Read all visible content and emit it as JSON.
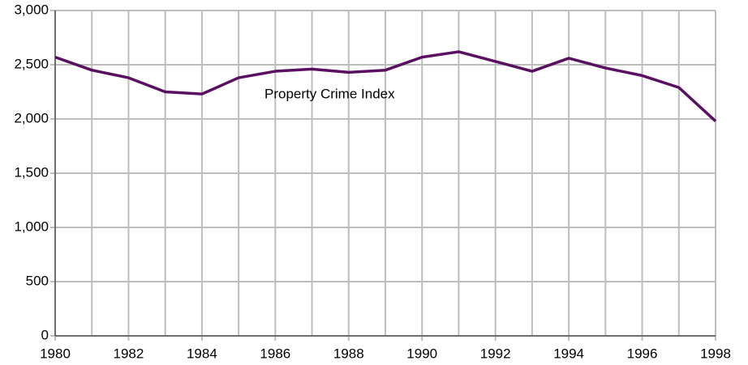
{
  "chart_data": {
    "type": "line",
    "x": [
      1980,
      1981,
      1982,
      1983,
      1984,
      1985,
      1986,
      1987,
      1988,
      1989,
      1990,
      1991,
      1992,
      1993,
      1994,
      1995,
      1996,
      1997,
      1998
    ],
    "series": [
      {
        "name": "Property Crime Index",
        "color": "#5a1060",
        "values": [
          2570,
          2450,
          2380,
          2250,
          2230,
          2380,
          2440,
          2460,
          2430,
          2450,
          2570,
          2620,
          2530,
          2440,
          2560,
          2470,
          2400,
          2290,
          1980
        ]
      }
    ],
    "xlim": [
      1980,
      1998
    ],
    "xticks": [
      1980,
      1982,
      1984,
      1986,
      1988,
      1990,
      1992,
      1994,
      1996,
      1998
    ],
    "xminor_ticks": [
      1981,
      1983,
      1985,
      1987,
      1989,
      1991,
      1993,
      1995,
      1997
    ],
    "ylim": [
      0,
      3000
    ],
    "yticks": [
      0,
      {
        "value": 500,
        "label": "500"
      },
      {
        "value": 1000,
        "label": "1,000"
      },
      {
        "value": 1500,
        "label": "1,500"
      },
      {
        "value": 2000,
        "label": "2,000"
      },
      {
        "value": 2500,
        "label": "2,500"
      },
      {
        "value": 3000,
        "label": "3,000"
      }
    ],
    "grid": true
  }
}
